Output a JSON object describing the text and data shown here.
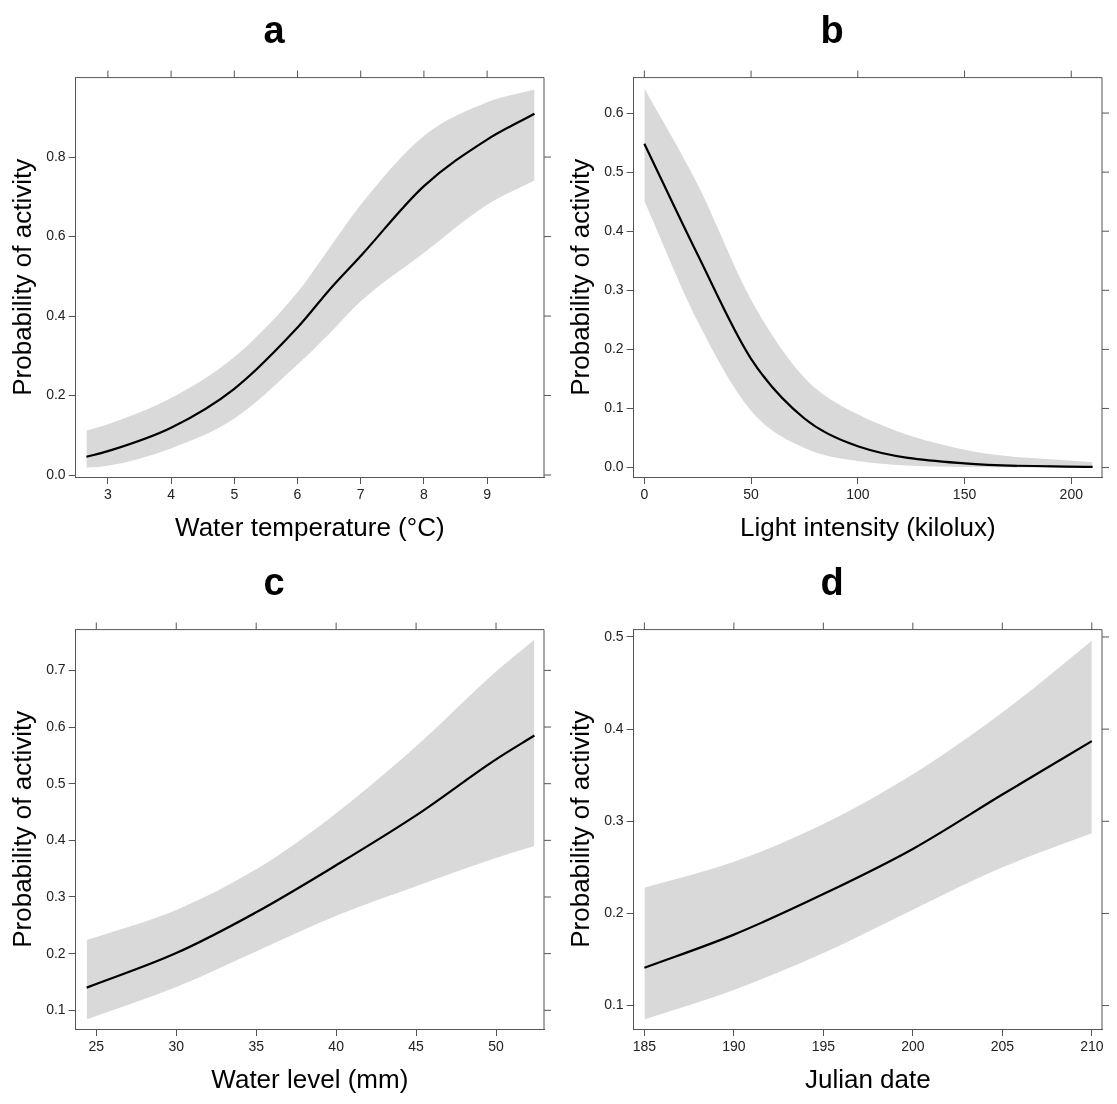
{
  "chart_data": [
    {
      "type": "line",
      "title": "a",
      "xlabel": "Water temperature (°C)",
      "ylabel": "Probability of activity",
      "xlim": [
        2.49,
        9.9
      ],
      "ylim": [
        -0.005,
        1.0
      ],
      "xticks": [
        3,
        4,
        5,
        6,
        7,
        8,
        9
      ],
      "yticks": [
        {
          "value": 0,
          "label": "0.0"
        },
        0.2,
        0.4,
        0.6,
        0.8
      ],
      "grid": false,
      "legend": false,
      "marker": "none",
      "line_style": "solid",
      "series": [
        {
          "color": "#000000",
          "x": [
            2.66,
            3,
            4,
            5,
            6,
            6.5,
            7,
            8,
            9,
            9.75
          ],
          "values": [
            0.046,
            0.06,
            0.119,
            0.217,
            0.371,
            0.465,
            0.551,
            0.727,
            0.844,
            0.909
          ],
          "lower": [
            0.018,
            0.023,
            0.067,
            0.142,
            0.278,
            0.355,
            0.437,
            0.559,
            0.68,
            0.741
          ],
          "upper": [
            0.112,
            0.128,
            0.194,
            0.297,
            0.46,
            0.57,
            0.68,
            0.853,
            0.938,
            0.97
          ]
        }
      ]
    },
    {
      "type": "line",
      "title": "b",
      "xlabel": "Light intensity (kilolux)",
      "ylabel": "Probability of activity",
      "xlim": [
        -5,
        214.4
      ],
      "ylim": [
        -0.016,
        0.66
      ],
      "xticks": [
        0,
        50,
        100,
        150,
        200
      ],
      "yticks": [
        {
          "value": 0,
          "label": "0.0"
        },
        0.1,
        0.2,
        0.3,
        0.4,
        0.5,
        0.6
      ],
      "grid": false,
      "legend": false,
      "marker": "none",
      "line_style": "solid",
      "series": [
        {
          "color": "#000000",
          "x": [
            0,
            25,
            50,
            75,
            100,
            150,
            210
          ],
          "values": [
            0.548,
            0.36,
            0.184,
            0.083,
            0.036,
            0.007,
            0.001
          ],
          "lower": [
            0.451,
            0.247,
            0.096,
            0.033,
            0.011,
            0.001,
            0.0
          ],
          "upper": [
            0.642,
            0.479,
            0.284,
            0.152,
            0.09,
            0.03,
            0.009
          ]
        }
      ]
    },
    {
      "type": "line",
      "title": "c",
      "xlabel": "Water level (mm)",
      "ylabel": "Probability of activity",
      "xlim": [
        23.71,
        53.0
      ],
      "ylim": [
        0.067,
        0.772
      ],
      "xticks": [
        25,
        30,
        35,
        40,
        45,
        50
      ],
      "yticks": [
        0.1,
        0.2,
        0.3,
        0.4,
        0.5,
        0.6,
        0.7
      ],
      "grid": false,
      "legend": false,
      "marker": "none",
      "line_style": "solid",
      "series": [
        {
          "color": "#000000",
          "x": [
            24.4,
            30,
            35,
            40,
            45,
            50,
            52.4
          ],
          "values": [
            0.14,
            0.201,
            0.273,
            0.356,
            0.444,
            0.543,
            0.585
          ],
          "lower": [
            0.084,
            0.141,
            0.204,
            0.267,
            0.319,
            0.369,
            0.39
          ],
          "upper": [
            0.224,
            0.277,
            0.349,
            0.448,
            0.566,
            0.698,
            0.754
          ]
        }
      ]
    },
    {
      "type": "line",
      "title": "d",
      "xlabel": "Julian date",
      "ylabel": "Probability of activity",
      "xlim": [
        184.4,
        210.57
      ],
      "ylim": [
        0.0746,
        0.508
      ],
      "xticks": [
        185,
        190,
        195,
        200,
        205,
        210
      ],
      "yticks": [
        0.1,
        0.2,
        0.3,
        0.4,
        0.5
      ],
      "grid": false,
      "legend": false,
      "marker": "none",
      "line_style": "solid",
      "series": [
        {
          "color": "#000000",
          "x": [
            185,
            190,
            195,
            200,
            205,
            210
          ],
          "values": [
            0.141,
            0.177,
            0.221,
            0.27,
            0.329,
            0.387
          ],
          "lower": [
            0.085,
            0.117,
            0.157,
            0.204,
            0.25,
            0.287
          ],
          "upper": [
            0.228,
            0.256,
            0.297,
            0.351,
            0.418,
            0.496
          ]
        }
      ]
    }
  ]
}
